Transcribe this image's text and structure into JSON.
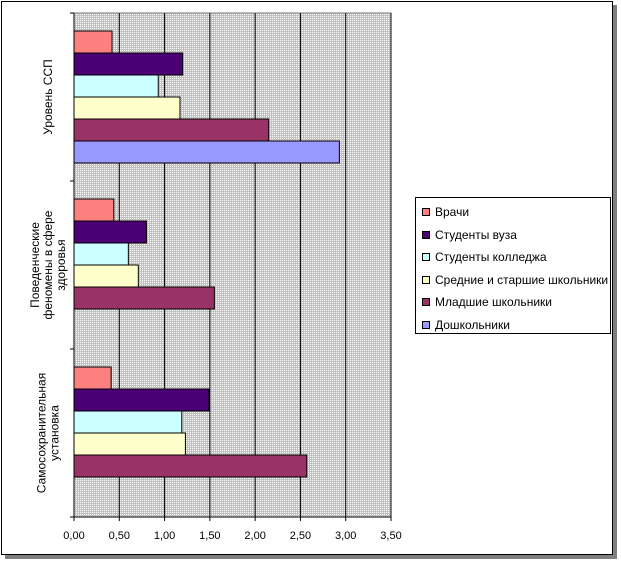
{
  "chart_data": {
    "type": "bar",
    "orientation": "horizontal",
    "categories": [
      "Самосохранительная установка",
      "Поведенческие феномены в сфере здоровья",
      "Уровень ССП"
    ],
    "category_label_lines": [
      [
        "Самосохранительная",
        "установка"
      ],
      [
        "Поведенческие",
        "феномены в сфере",
        "здоровья"
      ],
      [
        "Уровень ССП"
      ]
    ],
    "series": [
      {
        "name": "Врачи",
        "values": [
          0.41,
          0.44,
          0.42
        ]
      },
      {
        "name": "Студенты вуза",
        "values": [
          1.49,
          0.8,
          1.2
        ]
      },
      {
        "name": "Студенты колледжа",
        "values": [
          1.19,
          0.6,
          0.93
        ]
      },
      {
        "name": "Средние и старшие школьники",
        "values": [
          1.23,
          0.71,
          1.17
        ]
      },
      {
        "name": "Младшие школьники",
        "values": [
          2.57,
          1.55,
          2.15
        ]
      },
      {
        "name": "Дошкольники",
        "values": [
          null,
          null,
          2.93
        ]
      }
    ],
    "xticks": [
      "0,00",
      "0,50",
      "1,00",
      "1,50",
      "2,00",
      "2,50",
      "3,00",
      "3,50"
    ],
    "xlim": [
      0,
      3.5
    ],
    "grid": true,
    "legend_position": "right"
  },
  "colors": {
    "series": [
      "#ff8080",
      "#4b0073",
      "#ccffff",
      "#ffffcc",
      "#993366",
      "#9999ff"
    ],
    "plot_background": "#c0c0c0"
  }
}
